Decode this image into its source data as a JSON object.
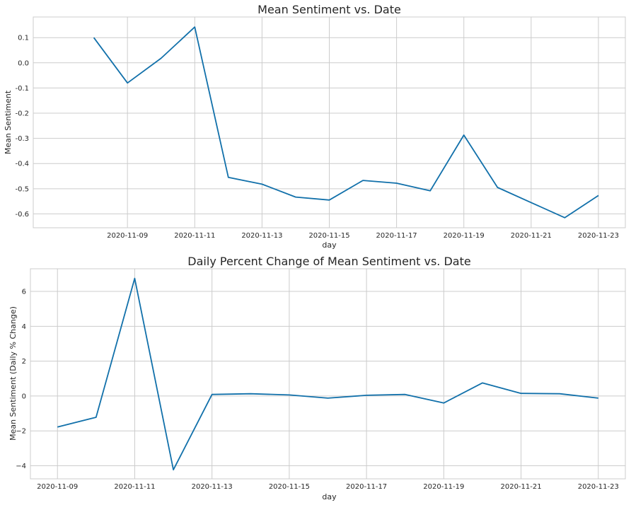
{
  "chart_data": [
    {
      "type": "line",
      "title": "Mean Sentiment vs. Date",
      "xlabel": "day",
      "ylabel": "Mean Sentiment",
      "ylim": [
        -0.655,
        0.182
      ],
      "xlim": [
        "2020-11-07",
        "2020-11-23"
      ],
      "x_ticks": [
        "2020-11-09",
        "2020-11-11",
        "2020-11-13",
        "2020-11-15",
        "2020-11-17",
        "2020-11-19",
        "2020-11-21",
        "2020-11-23"
      ],
      "y_ticks": [
        0.1,
        0.0,
        -0.1,
        -0.2,
        -0.3,
        -0.4,
        -0.5,
        -0.6
      ],
      "y_tick_labels": [
        "0.1",
        "0.0",
        "-0.1",
        "-0.2",
        "-0.3",
        "-0.4",
        "-0.5",
        "-0.6"
      ],
      "grid": true,
      "color": "#1170aa",
      "x": [
        "2020-11-08",
        "2020-11-09",
        "2020-11-10",
        "2020-11-11",
        "2020-11-12",
        "2020-11-13",
        "2020-11-14",
        "2020-11-15",
        "2020-11-16",
        "2020-11-17",
        "2020-11-18",
        "2020-11-19",
        "2020-11-20",
        "2020-11-21",
        "2020-11-22",
        "2020-11-23"
      ],
      "values": [
        0.1,
        -0.08,
        0.018,
        0.142,
        -0.455,
        -0.482,
        -0.533,
        -0.545,
        -0.467,
        -0.478,
        -0.508,
        -0.287,
        -0.495,
        -0.555,
        -0.615,
        -0.527
      ]
    },
    {
      "type": "line",
      "title": "Daily Percent Change of Mean Sentiment vs. Date",
      "xlabel": "day",
      "ylabel": "Mean Sentiment (Daily % Change)",
      "ylim": [
        -4.75,
        7.3
      ],
      "xlim": [
        "2020-11-09",
        "2020-11-23"
      ],
      "x_ticks": [
        "2020-11-09",
        "2020-11-11",
        "2020-11-13",
        "2020-11-15",
        "2020-11-17",
        "2020-11-19",
        "2020-11-21",
        "2020-11-23"
      ],
      "y_ticks": [
        6,
        4,
        2,
        0,
        -2,
        -4
      ],
      "y_tick_labels": [
        "6",
        "4",
        "2",
        "0",
        "−2",
        "−4"
      ],
      "grid": true,
      "color": "#1170aa",
      "x": [
        "2020-11-09",
        "2020-11-10",
        "2020-11-11",
        "2020-11-12",
        "2020-11-13",
        "2020-11-14",
        "2020-11-15",
        "2020-11-16",
        "2020-11-17",
        "2020-11-18",
        "2020-11-19",
        "2020-11-20",
        "2020-11-21",
        "2020-11-22",
        "2020-11-23"
      ],
      "values": [
        -1.78,
        -1.22,
        6.75,
        -4.23,
        0.09,
        0.13,
        0.06,
        -0.12,
        0.04,
        0.09,
        -0.4,
        0.75,
        0.15,
        0.13,
        -0.12
      ]
    }
  ]
}
